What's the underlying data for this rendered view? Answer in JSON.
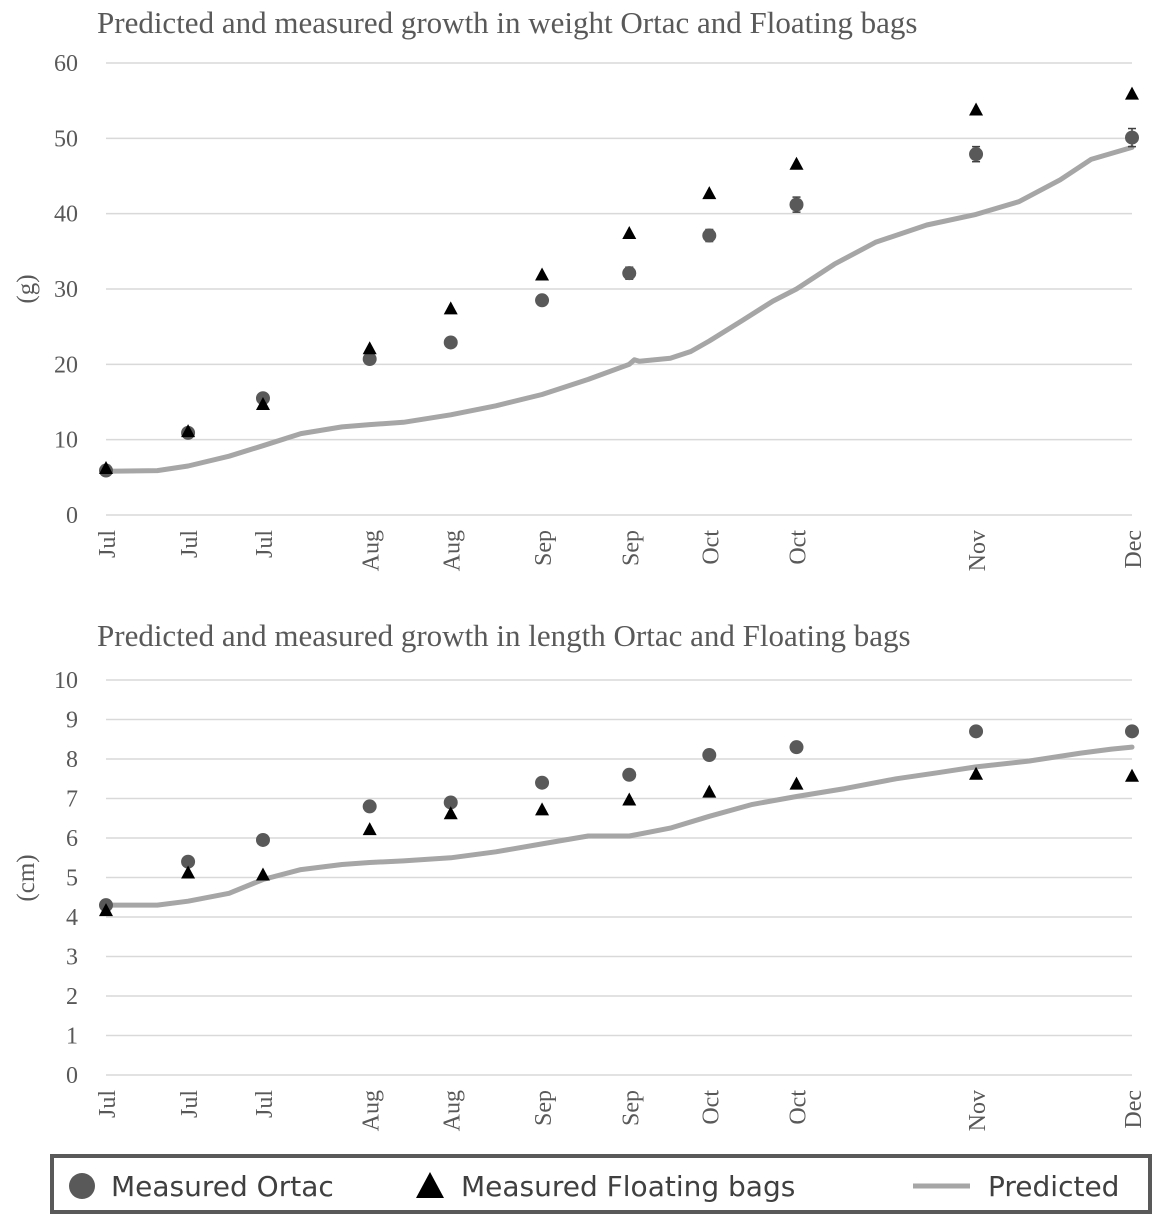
{
  "legend": {
    "ortac": "Measured Ortac",
    "floating": "Measured Floating bags",
    "predicted": "Predicted"
  },
  "colors": {
    "ortac": "#595959",
    "floating": "#000000",
    "predicted": "#a6a6a6",
    "grid": "#d9d9d9",
    "legend_border": "#595959"
  },
  "chart_data": [
    {
      "type": "scatter",
      "title": "Predicted and measured growth in weight Ortac and Floating bags",
      "ylabel": "(g)",
      "xlabel": "",
      "ylim": [
        0,
        60
      ],
      "yticks": [
        0,
        10,
        20,
        30,
        40,
        50,
        60
      ],
      "grid": true,
      "x_ticks": [
        {
          "t": 0,
          "label": "Jul"
        },
        {
          "t": 0.08,
          "label": "Jul"
        },
        {
          "t": 0.153,
          "label": "Jul"
        },
        {
          "t": 0.257,
          "label": "Aug"
        },
        {
          "t": 0.336,
          "label": "Aug"
        },
        {
          "t": 0.425,
          "label": "Sep"
        },
        {
          "t": 0.51,
          "label": "Sep"
        },
        {
          "t": 0.588,
          "label": "Oct"
        },
        {
          "t": 0.673,
          "label": "Oct"
        },
        {
          "t": 0.848,
          "label": "Nov"
        },
        {
          "t": 1.0,
          "label": "Dec"
        }
      ],
      "series": [
        {
          "name": "Measured Ortac",
          "marker": "circle",
          "t": [
            0,
            0.08,
            0.153,
            0.257,
            0.336,
            0.425,
            0.51,
            0.588,
            0.673,
            0.848,
            1.0
          ],
          "values": [
            5.9,
            10.9,
            15.5,
            20.7,
            22.9,
            28.5,
            32.1,
            37.1,
            41.2,
            47.9,
            50.1
          ],
          "err": [
            0,
            0,
            0,
            0,
            0,
            0.5,
            0.8,
            0.8,
            1.0,
            1.0,
            1.2
          ]
        },
        {
          "name": "Measured Floating bags",
          "marker": "triangle",
          "t": [
            0,
            0.08,
            0.153,
            0.257,
            0.336,
            0.425,
            0.51,
            0.588,
            0.673,
            0.848,
            1.0
          ],
          "values": [
            6.1,
            11.0,
            14.6,
            22.0,
            27.3,
            31.8,
            37.3,
            42.6,
            46.5,
            53.7,
            55.8
          ]
        },
        {
          "name": "Predicted",
          "marker": "line",
          "t": [
            0,
            0.05,
            0.08,
            0.12,
            0.153,
            0.19,
            0.23,
            0.257,
            0.29,
            0.336,
            0.38,
            0.425,
            0.47,
            0.51,
            0.515,
            0.52,
            0.55,
            0.57,
            0.588,
            0.62,
            0.65,
            0.673,
            0.71,
            0.75,
            0.8,
            0.848,
            0.89,
            0.93,
            0.96,
            1.0
          ],
          "values": [
            5.8,
            5.9,
            6.5,
            7.8,
            9.2,
            10.8,
            11.7,
            12.0,
            12.3,
            13.3,
            14.5,
            16.0,
            18.0,
            20.0,
            20.6,
            20.4,
            20.8,
            21.7,
            23.1,
            25.8,
            28.4,
            30.0,
            33.3,
            36.2,
            38.5,
            39.9,
            41.6,
            44.5,
            47.2,
            48.8
          ]
        }
      ]
    },
    {
      "type": "scatter",
      "title": "Predicted and measured growth in length Ortac and Floating bags",
      "ylabel": "(cm)",
      "xlabel": "",
      "ylim": [
        0,
        10
      ],
      "yticks": [
        0,
        1,
        2,
        3,
        4,
        5,
        6,
        7,
        8,
        9,
        10
      ],
      "grid": true,
      "x_ticks": [
        {
          "t": 0,
          "label": "Jul"
        },
        {
          "t": 0.08,
          "label": "Jul"
        },
        {
          "t": 0.153,
          "label": "Jul"
        },
        {
          "t": 0.257,
          "label": "Aug"
        },
        {
          "t": 0.336,
          "label": "Aug"
        },
        {
          "t": 0.425,
          "label": "Sep"
        },
        {
          "t": 0.51,
          "label": "Sep"
        },
        {
          "t": 0.588,
          "label": "Oct"
        },
        {
          "t": 0.673,
          "label": "Oct"
        },
        {
          "t": 0.848,
          "label": "Nov"
        },
        {
          "t": 1.0,
          "label": "Dec"
        }
      ],
      "series": [
        {
          "name": "Measured Ortac",
          "marker": "circle",
          "t": [
            0,
            0.08,
            0.153,
            0.257,
            0.336,
            0.425,
            0.51,
            0.588,
            0.673,
            0.848,
            1.0
          ],
          "values": [
            4.3,
            5.4,
            5.95,
            6.8,
            6.9,
            7.4,
            7.6,
            8.1,
            8.3,
            8.7,
            8.7
          ]
        },
        {
          "name": "Measured Floating bags",
          "marker": "triangle",
          "t": [
            0,
            0.08,
            0.153,
            0.257,
            0.336,
            0.425,
            0.51,
            0.588,
            0.673,
            0.848,
            1.0
          ],
          "values": [
            4.15,
            5.1,
            5.05,
            6.2,
            6.6,
            6.7,
            6.95,
            7.15,
            7.35,
            7.6,
            7.55
          ]
        },
        {
          "name": "Predicted",
          "marker": "line",
          "t": [
            0,
            0.05,
            0.08,
            0.12,
            0.153,
            0.19,
            0.23,
            0.257,
            0.29,
            0.336,
            0.38,
            0.425,
            0.47,
            0.51,
            0.55,
            0.588,
            0.63,
            0.673,
            0.72,
            0.77,
            0.81,
            0.848,
            0.9,
            0.95,
            0.98,
            1.0
          ],
          "values": [
            4.3,
            4.3,
            4.4,
            4.6,
            4.95,
            5.2,
            5.33,
            5.38,
            5.42,
            5.5,
            5.65,
            5.85,
            6.05,
            6.05,
            6.25,
            6.55,
            6.85,
            7.05,
            7.25,
            7.5,
            7.65,
            7.8,
            7.95,
            8.15,
            8.25,
            8.3
          ]
        }
      ]
    }
  ]
}
